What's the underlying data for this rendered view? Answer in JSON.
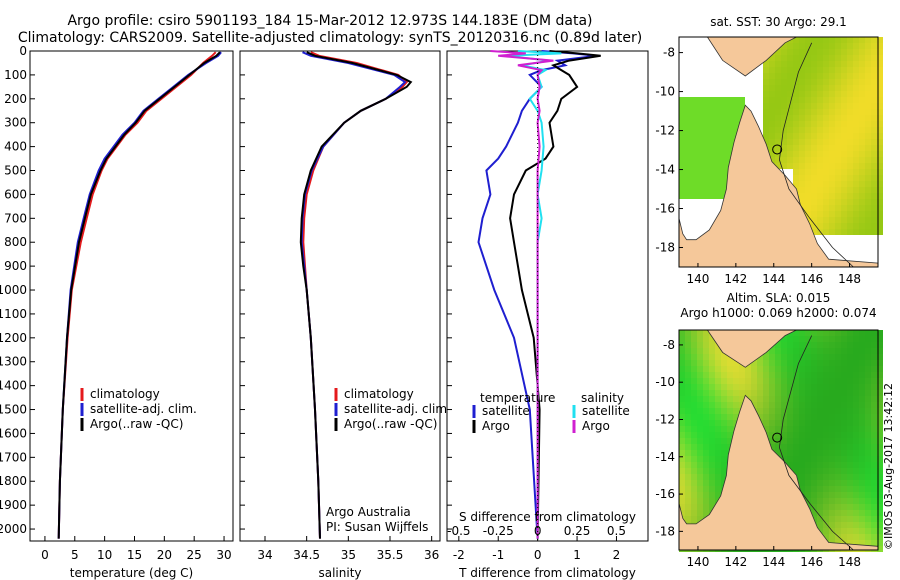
{
  "header": {
    "line1": "Argo profile: csiro 5901193_184 15-Mar-2012 12.973S 144.183E (DM data)",
    "line2": "Climatology: CARS2009. Satellite-adjusted climatology: synTS_20120316.nc (0.89d later)"
  },
  "depth_ticks": [
    0,
    100,
    200,
    300,
    400,
    500,
    600,
    700,
    800,
    900,
    1000,
    1100,
    1200,
    1300,
    1400,
    1500,
    1600,
    1700,
    1800,
    1900,
    2000
  ],
  "colors": {
    "climatology": "#e41a1c",
    "satellite": "#1f1fd0",
    "argo": "#000000",
    "argo_s": "#d020d0",
    "sat_s": "#20e0f0"
  },
  "chart_data": [
    {
      "type": "line",
      "name": "temperature",
      "xlabel": "temperature (deg C)",
      "xlim": [
        -2.5,
        31.5
      ],
      "xticks": [
        0,
        5,
        10,
        15,
        20,
        25,
        30
      ],
      "ylim": [
        0,
        2050
      ],
      "legend": [
        "climatology",
        "satellite-adj. clim.",
        "Argo(..raw -QC)"
      ],
      "series": [
        {
          "name": "climatology",
          "d": [
            5,
            20,
            50,
            100,
            150,
            200,
            250,
            300,
            350,
            400,
            450,
            500,
            600,
            700,
            800,
            1000,
            1200,
            1500,
            1800,
            2040
          ],
          "v": [
            28.6,
            28.0,
            26.5,
            24.5,
            22.0,
            19.5,
            17.0,
            15.5,
            13.5,
            12.0,
            10.5,
            9.5,
            8.0,
            7.0,
            6.0,
            4.5,
            3.8,
            3.0,
            2.5,
            2.3
          ]
        },
        {
          "name": "satellite-adj. clim.",
          "d": [
            5,
            20,
            50,
            100,
            150,
            200,
            250,
            300,
            350,
            400,
            450,
            500,
            600,
            700,
            800,
            1000,
            1200,
            1500,
            1800,
            2040
          ],
          "v": [
            29.5,
            29.0,
            27.0,
            24.0,
            21.5,
            19.0,
            16.5,
            15.0,
            13.0,
            11.5,
            10.0,
            9.0,
            7.5,
            6.5,
            5.5,
            4.3,
            3.7,
            3.0,
            2.5,
            2.3
          ]
        },
        {
          "name": "Argo(..raw -QC)",
          "d": [
            5,
            20,
            50,
            100,
            150,
            200,
            250,
            300,
            350,
            400,
            450,
            500,
            600,
            700,
            800,
            1000,
            1200,
            1500,
            1800,
            2040
          ],
          "v": [
            29.3,
            28.7,
            26.7,
            24.2,
            21.7,
            19.2,
            16.7,
            15.2,
            13.3,
            11.8,
            10.3,
            9.3,
            7.7,
            6.7,
            5.7,
            4.4,
            3.7,
            3.0,
            2.5,
            2.3
          ]
        }
      ]
    },
    {
      "type": "line",
      "name": "salinity",
      "xlabel": "salinity",
      "xlim": [
        33.7,
        36.1
      ],
      "xticks": [
        34,
        34.5,
        35,
        35.5,
        36
      ],
      "ylim": [
        0,
        2050
      ],
      "legend": [
        "climatology",
        "satellite-adj. clim.",
        "Argo(..raw -QC)"
      ],
      "annotation": [
        "Argo Australia",
        "PI: Susan Wijffels"
      ],
      "series": [
        {
          "name": "climatology",
          "d": [
            5,
            20,
            50,
            100,
            130,
            150,
            200,
            250,
            300,
            400,
            500,
            600,
            700,
            800,
            900,
            1000,
            1200,
            1500,
            1800,
            2040
          ],
          "v": [
            34.55,
            34.65,
            35.1,
            35.6,
            35.7,
            35.65,
            35.45,
            35.15,
            34.95,
            34.7,
            34.58,
            34.5,
            34.47,
            34.46,
            34.48,
            34.5,
            34.55,
            34.6,
            34.64,
            34.66
          ]
        },
        {
          "name": "satellite-adj. clim.",
          "d": [
            5,
            20,
            50,
            100,
            130,
            150,
            200,
            250,
            300,
            400,
            500,
            600,
            700,
            800,
            900,
            1000,
            1200,
            1500,
            1800,
            2040
          ],
          "v": [
            34.45,
            34.55,
            35.0,
            35.55,
            35.68,
            35.62,
            35.45,
            35.15,
            34.95,
            34.7,
            34.56,
            34.48,
            34.45,
            34.44,
            34.47,
            34.5,
            34.55,
            34.6,
            34.64,
            34.66
          ]
        },
        {
          "name": "Argo(..raw -QC)",
          "d": [
            5,
            20,
            50,
            100,
            130,
            150,
            200,
            250,
            300,
            400,
            500,
            600,
            700,
            800,
            900,
            1000,
            1200,
            1500,
            1800,
            2040
          ],
          "v": [
            34.5,
            34.6,
            35.05,
            35.58,
            35.75,
            35.7,
            35.45,
            35.15,
            34.95,
            34.68,
            34.55,
            34.47,
            34.44,
            34.43,
            34.46,
            34.5,
            34.55,
            34.6,
            34.64,
            34.66
          ]
        }
      ]
    },
    {
      "type": "line",
      "name": "difference",
      "xlabel": "T difference from climatology",
      "xlabel_top": "S difference from climatology",
      "xlim": [
        -2.3,
        2.8
      ],
      "xticks": [
        -2,
        -1,
        0,
        1,
        2
      ],
      "sticks_labels": [
        "-0.5",
        "-0.25",
        "0",
        "0.25",
        "0.5"
      ],
      "sticks_values": [
        -2,
        -1,
        0,
        1,
        2
      ],
      "ylim": [
        0,
        2050
      ],
      "legend_left_title": "temperature",
      "legend_right_title": "salinity",
      "legend": [
        "satellite",
        "Argo",
        "satellite",
        "Argo"
      ],
      "series": [
        {
          "name": "T satellite",
          "d": [
            0,
            10,
            20,
            40,
            60,
            80,
            100,
            150,
            200,
            250,
            300,
            400,
            450,
            500,
            600,
            700,
            800,
            1000,
            1200,
            1500,
            2040
          ],
          "v": [
            0.1,
            0.9,
            1.5,
            0.5,
            0.7,
            0.1,
            -0.2,
            0.1,
            -0.2,
            -0.4,
            -0.5,
            -0.8,
            -1.0,
            -1.3,
            -1.2,
            -1.4,
            -1.5,
            -1.1,
            -0.6,
            -0.2,
            0
          ]
        },
        {
          "name": "T Argo",
          "d": [
            0,
            10,
            20,
            40,
            60,
            80,
            100,
            150,
            200,
            250,
            300,
            400,
            450,
            500,
            600,
            700,
            800,
            1000,
            1200,
            1500,
            2040
          ],
          "v": [
            0.3,
            1.0,
            1.6,
            0.8,
            0.4,
            0.6,
            0.8,
            1.0,
            0.6,
            0.5,
            0.3,
            0.4,
            0.2,
            -0.3,
            -0.6,
            -0.7,
            -0.6,
            -0.4,
            -0.1,
            0.05,
            0
          ]
        },
        {
          "name": "S satellite",
          "d": [
            0,
            10,
            20,
            40,
            60,
            80,
            100,
            150,
            200,
            250,
            300,
            400,
            500,
            600,
            700,
            800,
            1000,
            1200,
            1500,
            2040
          ],
          "v": [
            -0.5,
            0.6,
            -0.8,
            0.3,
            -0.4,
            0.2,
            0.0,
            0.1,
            -0.2,
            0.0,
            0.1,
            0.15,
            0.1,
            0.0,
            0.1,
            0.0,
            0.0,
            0.0,
            0.0,
            0
          ]
        },
        {
          "name": "S Argo",
          "d": [
            0,
            10,
            20,
            40,
            60,
            80,
            100,
            150,
            200,
            250,
            300,
            400,
            500,
            600,
            700,
            800,
            1000,
            1200,
            1500,
            2040
          ],
          "v": [
            -1.2,
            -0.3,
            -1.0,
            0.4,
            -0.5,
            0.1,
            0.0,
            0.05,
            0.0,
            0.05,
            0.0,
            0.05,
            0.0,
            0.0,
            0.0,
            0.0,
            0.0,
            0.0,
            0.0,
            0
          ]
        }
      ]
    },
    {
      "type": "heatmap",
      "name": "SST map",
      "title": "sat. SST: 30 Argo: 29.1",
      "xticks": [
        140,
        142,
        144,
        146,
        148
      ],
      "yticks": [
        -8,
        -10,
        -12,
        -14,
        -16,
        -18
      ],
      "xlim": [
        139,
        149.5
      ],
      "ylim": [
        -19,
        -7.2
      ],
      "argo": [
        144.18,
        -12.97
      ]
    },
    {
      "type": "heatmap",
      "name": "SLA map",
      "title": "Altim. SLA: 0.015",
      "subtitle": "Argo h1000: 0.069 h2000: 0.074",
      "xticks": [
        140,
        142,
        144,
        146,
        148
      ],
      "yticks": [
        -8,
        -10,
        -12,
        -14,
        -16,
        -18
      ],
      "xlim": [
        139,
        149.5
      ],
      "ylim": [
        -19,
        -7.2
      ],
      "argo": [
        144.18,
        -12.97
      ]
    }
  ],
  "side_label": "©IMOS 03-Aug-2017 13:42:12"
}
